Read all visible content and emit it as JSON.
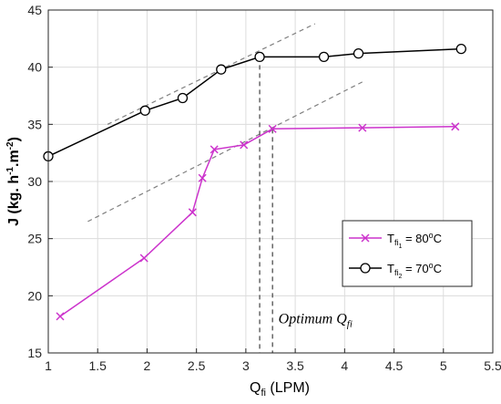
{
  "chart_data": {
    "type": "line",
    "xlabel_main": "Q",
    "xlabel_sub": "fi",
    "xlabel_unit": " (LPM)",
    "ylabel_main": "J (kg. h",
    "ylabel_sup1": "-1",
    "ylabel_mid": ".m",
    "ylabel_sup2": "-2",
    "ylabel_end": ")",
    "xlim": [
      1,
      5.5
    ],
    "ylim": [
      15,
      45
    ],
    "xticks": [
      "1",
      "1.5",
      "2",
      "2.5",
      "3",
      "3.5",
      "4",
      "4.5",
      "5",
      "5.5"
    ],
    "yticks": [
      "15",
      "20",
      "25",
      "30",
      "35",
      "40",
      "45"
    ],
    "grid": true,
    "legend_position": "lower-right",
    "series": [
      {
        "name": "80",
        "legend_main": "T",
        "legend_sub": "fi",
        "legend_subsub": "1",
        "legend_value": " = 80",
        "legend_deg": "o",
        "legend_unit": "C",
        "color": "#cc33cc",
        "marker": "x",
        "x": [
          1.12,
          1.97,
          2.46,
          2.56,
          2.68,
          2.98,
          3.27,
          4.18,
          5.12
        ],
        "y": [
          18.2,
          23.3,
          27.3,
          30.3,
          32.8,
          33.2,
          34.6,
          34.7,
          34.8
        ]
      },
      {
        "name": "70",
        "legend_main": "T",
        "legend_sub": "fi",
        "legend_subsub": "2",
        "legend_value": " = 70",
        "legend_deg": "o",
        "legend_unit": "C",
        "color": "#000000",
        "marker": "circle",
        "x": [
          1.0,
          1.98,
          2.36,
          2.75,
          3.14,
          3.79,
          4.14,
          5.18
        ],
        "y": [
          32.2,
          36.2,
          37.3,
          39.8,
          40.9,
          40.9,
          41.2,
          41.6
        ]
      }
    ],
    "trend_lines": [
      {
        "x": [
          1.6,
          3.7
        ],
        "y": [
          35.0,
          43.8
        ]
      },
      {
        "x": [
          1.4,
          4.2
        ],
        "y": [
          26.5,
          38.8
        ]
      }
    ],
    "vertical_lines": [
      {
        "x": 3.14,
        "y_top": 40.9
      },
      {
        "x": 3.27,
        "y_top": 34.6
      }
    ],
    "annotation": {
      "text_main": "Optimum Q",
      "text_sub": "fi",
      "x": 3.33,
      "y": 17.6
    }
  }
}
